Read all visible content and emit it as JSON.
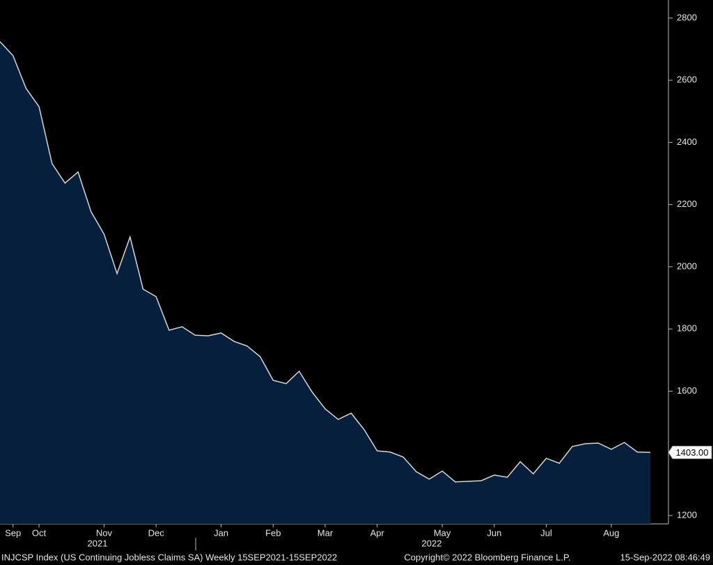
{
  "chart_data": {
    "type": "area",
    "categories": [
      null,
      "Sep",
      null,
      "Oct",
      null,
      null,
      null,
      null,
      "Nov",
      null,
      null,
      null,
      "Dec",
      null,
      null,
      null,
      null,
      "Jan",
      null,
      null,
      null,
      "Feb",
      null,
      null,
      null,
      "Mar",
      null,
      null,
      null,
      "Apr",
      null,
      null,
      null,
      null,
      "May",
      null,
      null,
      null,
      "Jun",
      null,
      null,
      null,
      "Jul",
      null,
      null,
      null,
      null,
      "Aug",
      null,
      null,
      null
    ],
    "values": [
      2724,
      2679,
      2574,
      2515,
      2332,
      2269,
      2305,
      2177,
      2105,
      1978,
      2096,
      1928,
      1904,
      1796,
      1807,
      1780,
      1778,
      1787,
      1760,
      1745,
      1711,
      1635,
      1624,
      1664,
      1597,
      1543,
      1509,
      1529,
      1476,
      1408,
      1404,
      1388,
      1341,
      1317,
      1343,
      1308,
      1310,
      1312,
      1330,
      1323,
      1373,
      1334,
      1384,
      1368,
      1422,
      1431,
      1433,
      1413,
      1435,
      1404,
      1403
    ],
    "last_value_label": "1403.00",
    "year_labels": [
      "2021",
      "2022"
    ],
    "color": "#051f3c",
    "line_color": "#d8d8d8",
    "ylim": [
      1173,
      2858
    ],
    "yticks": [
      1200,
      1400,
      1600,
      1800,
      2000,
      2200,
      2400,
      2600,
      2800
    ],
    "footer": {
      "index": "INJCSP Index (US Continuing Jobless Claims SA)  Weekly 15SEP2021-15SEP2022",
      "copyright": "Copyright© 2022 Bloomberg Finance L.P.",
      "timestamp": "15-Sep-2022 08:46:49"
    }
  }
}
